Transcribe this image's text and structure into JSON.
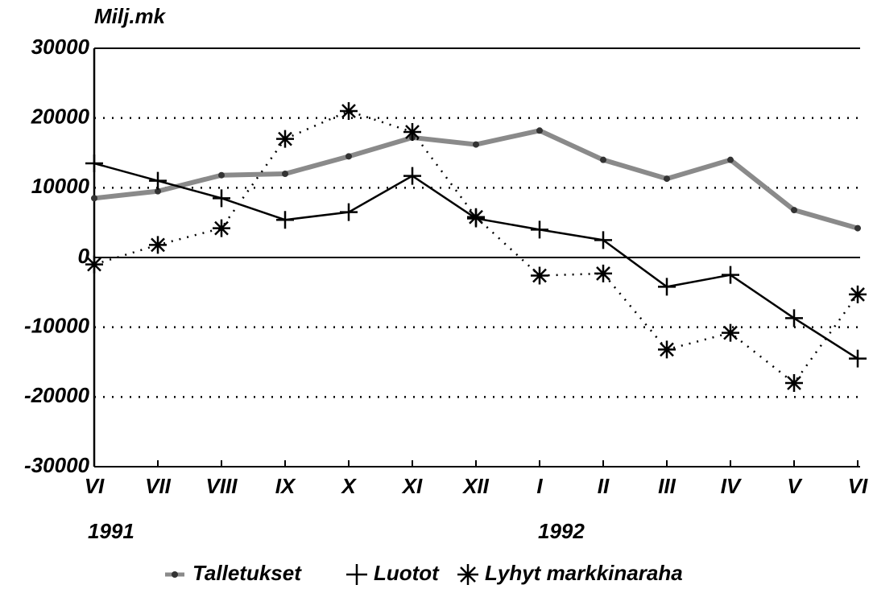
{
  "chart_data": {
    "type": "line",
    "y_label": "Milj.mk",
    "categories": [
      "VI",
      "VII",
      "VIII",
      "IX",
      "X",
      "XI",
      "XII",
      "I",
      "II",
      "III",
      "IV",
      "V",
      "VI"
    ],
    "year_labels": [
      "1991",
      "1992"
    ],
    "series": [
      {
        "name": "Talletukset",
        "color": "#8a8a8a",
        "marker": "dot",
        "dashed": false,
        "values": [
          8500,
          9500,
          11800,
          12000,
          14500,
          17200,
          16200,
          18200,
          14000,
          11300,
          14000,
          6800,
          4200
        ]
      },
      {
        "name": "Luotot",
        "color": "#000000",
        "marker": "plus",
        "dashed": false,
        "values": [
          13500,
          11000,
          8500,
          5400,
          6500,
          11700,
          5600,
          4000,
          2500,
          -4200,
          -2500,
          -8700,
          -14500
        ]
      },
      {
        "name": "Lyhyt markkinaraha",
        "color": "#000000",
        "marker": "asterisk",
        "dashed": true,
        "values": [
          -1000,
          1800,
          4200,
          17000,
          21000,
          18000,
          5800,
          -2600,
          -2300,
          -13200,
          -10800,
          -18000,
          -5300
        ]
      }
    ],
    "ylim": [
      -30000,
      30000
    ],
    "yticks": [
      -30000,
      -20000,
      -10000,
      0,
      10000,
      20000,
      30000
    ],
    "grid": true,
    "legend": "bottom"
  }
}
